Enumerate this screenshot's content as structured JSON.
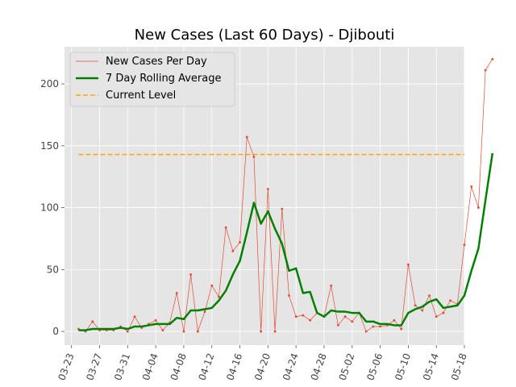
{
  "chart_data": {
    "type": "line",
    "title": "New Cases (Last 60 Days) - Djibouti",
    "xlabel": "",
    "ylabel": "",
    "x_start": "2020-03-24",
    "xlim": [
      "2020-03-22",
      "2020-05-18"
    ],
    "ylim": [
      -11,
      230
    ],
    "x_ticks": [
      "03-23",
      "03-27",
      "03-31",
      "04-04",
      "04-08",
      "04-12",
      "04-16",
      "04-20",
      "04-24",
      "04-28",
      "05-02",
      "05-06",
      "05-10",
      "05-14",
      "05-18"
    ],
    "y_ticks": [
      0,
      50,
      100,
      150,
      200
    ],
    "grid": true,
    "legend_position": "top-left",
    "series": [
      {
        "name": "New Cases Per Day",
        "style": "thin-line-with-dots",
        "color": "#E24A33",
        "values": [
          2,
          0,
          8,
          1,
          1,
          1,
          4,
          0,
          12,
          3,
          6,
          9,
          1,
          7,
          31,
          0,
          46,
          0,
          16,
          37,
          28,
          84,
          65,
          72,
          157,
          141,
          0,
          115,
          0,
          99,
          29,
          12,
          13,
          9,
          15,
          12,
          37,
          5,
          12,
          8,
          15,
          0,
          4,
          4,
          5,
          9,
          2,
          54,
          21,
          17,
          29,
          12,
          15,
          25,
          22,
          70,
          117,
          100,
          211,
          220
        ]
      },
      {
        "name": "7 Day Rolling Average",
        "style": "thick-line",
        "color": "#008000",
        "values": [
          1,
          1,
          2,
          2,
          2,
          2,
          3,
          2,
          4,
          4,
          5,
          6,
          6,
          6,
          11,
          10,
          17,
          17,
          18,
          19,
          25,
          33,
          46,
          57,
          80,
          104,
          87,
          97,
          83,
          71,
          49,
          51,
          31,
          32,
          15,
          12,
          17,
          16,
          16,
          15,
          15,
          8,
          8,
          6,
          6,
          5,
          5,
          15,
          18,
          20,
          24,
          26,
          19,
          20,
          21,
          29,
          49,
          67,
          106,
          144
        ]
      },
      {
        "name": "Current Level",
        "style": "dashed-horizontal",
        "color": "#FFA500",
        "value": 143,
        "x_range": [
          "2020-03-24",
          "2020-05-22"
        ]
      }
    ]
  }
}
